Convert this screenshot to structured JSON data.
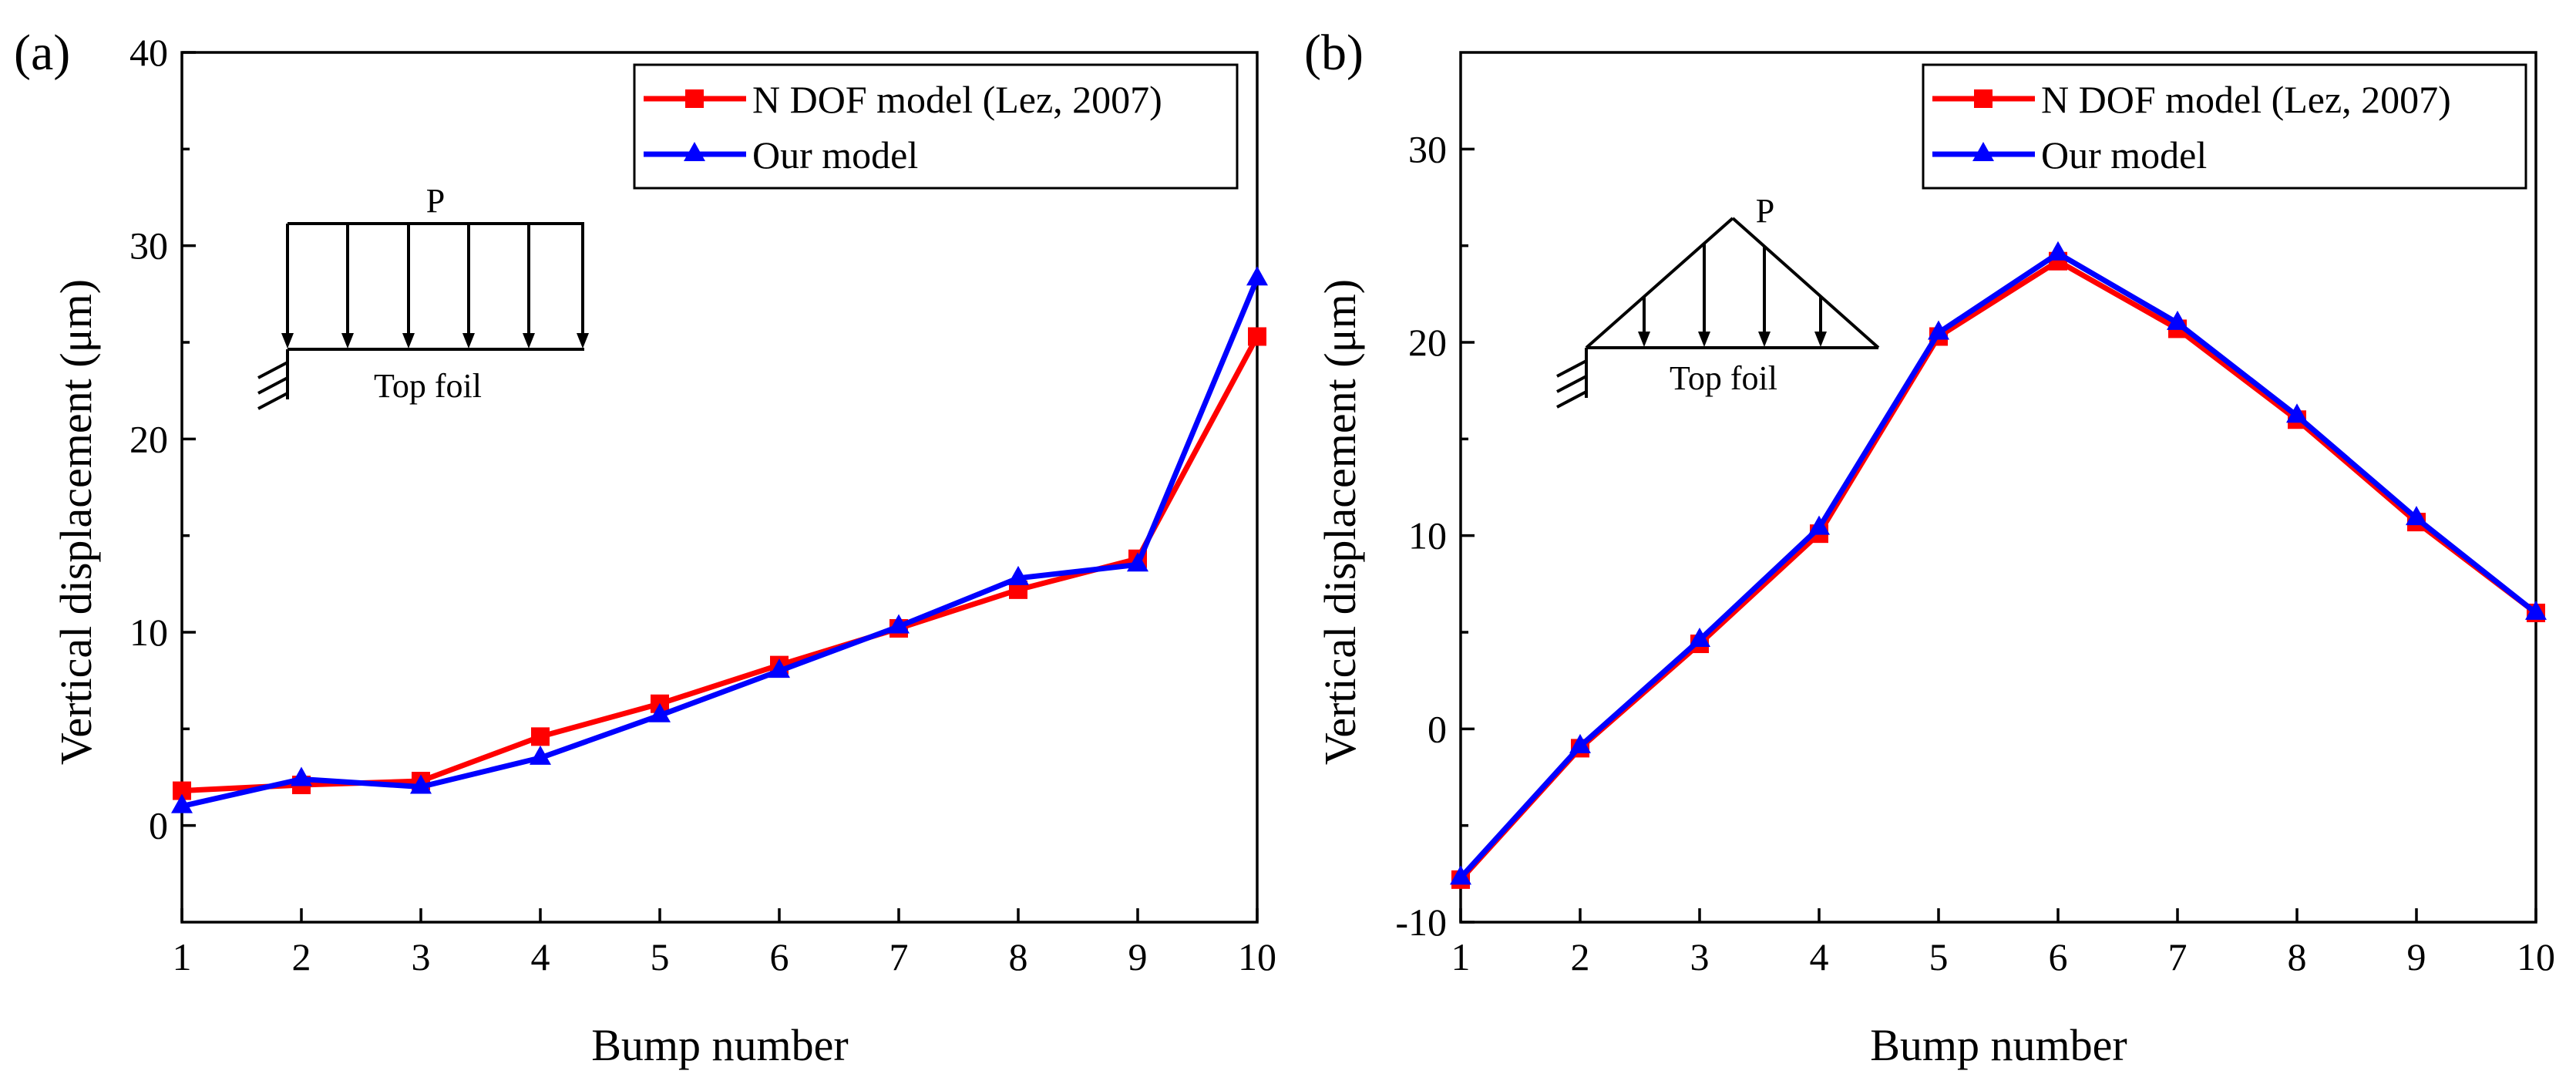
{
  "chart_data": [
    {
      "type": "line",
      "panel_label": "(a)",
      "xlabel": "Bump number",
      "ylabel": "Vertical displacement (μm)",
      "xlim": [
        1,
        10
      ],
      "ylim": [
        -5,
        40
      ],
      "xticks": [
        1,
        2,
        3,
        4,
        5,
        6,
        7,
        8,
        9,
        10
      ],
      "yticks": [
        0,
        10,
        20,
        30,
        40
      ],
      "grid": false,
      "legend_position": "top-right",
      "x": [
        1,
        2,
        3,
        4,
        5,
        6,
        7,
        8,
        9,
        10
      ],
      "series": [
        {
          "name": "N DOF model (Lez, 2007)",
          "color": "#ff0000",
          "marker": "square",
          "values": [
            1.8,
            2.1,
            2.3,
            4.6,
            6.3,
            8.3,
            10.2,
            12.2,
            13.8,
            25.3
          ]
        },
        {
          "name": "Our model",
          "color": "#0000ff",
          "marker": "triangle",
          "values": [
            1.0,
            2.4,
            2.0,
            3.5,
            5.7,
            8.0,
            10.3,
            12.8,
            13.5,
            28.3
          ]
        }
      ],
      "inset": {
        "load_label": "P",
        "foil_label": "Top foil",
        "load_shape": "uniform"
      }
    },
    {
      "type": "line",
      "panel_label": "(b)",
      "xlabel": "Bump number",
      "ylabel": "Vertical displacement (μm)",
      "xlim": [
        1,
        10
      ],
      "ylim": [
        -10,
        35
      ],
      "xticks": [
        1,
        2,
        3,
        4,
        5,
        6,
        7,
        8,
        9,
        10
      ],
      "yticks": [
        -10,
        0,
        10,
        20,
        30
      ],
      "grid": false,
      "legend_position": "top-right",
      "x": [
        1,
        2,
        3,
        4,
        5,
        6,
        7,
        8,
        9,
        10
      ],
      "series": [
        {
          "name": "N DOF model (Lez, 2007)",
          "color": "#ff0000",
          "marker": "square",
          "values": [
            -7.8,
            -1.0,
            4.4,
            10.1,
            20.3,
            24.2,
            20.7,
            16.0,
            10.7,
            6.0
          ]
        },
        {
          "name": "Our model",
          "color": "#0000ff",
          "marker": "triangle",
          "values": [
            -7.7,
            -0.9,
            4.6,
            10.4,
            20.5,
            24.6,
            21.0,
            16.2,
            10.9,
            6.0
          ]
        }
      ],
      "inset": {
        "load_label": "P",
        "foil_label": "Top foil",
        "load_shape": "triangular"
      }
    }
  ]
}
